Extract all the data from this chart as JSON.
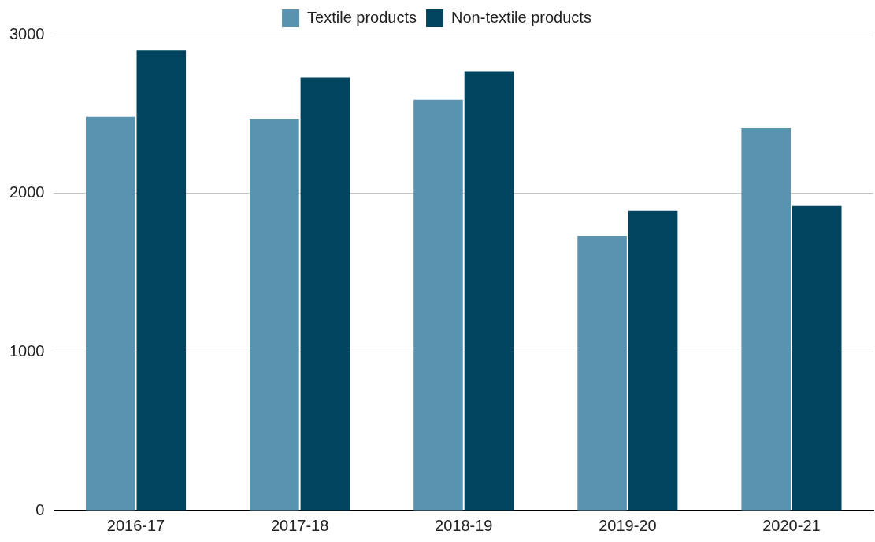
{
  "chart_data": {
    "type": "bar",
    "categories": [
      "2016-17",
      "2017-18",
      "2018-19",
      "2019-20",
      "2020-21"
    ],
    "series": [
      {
        "name": "Textile products",
        "color": "#5a93b0",
        "values": [
          2480,
          2470,
          2590,
          1730,
          2410
        ]
      },
      {
        "name": "Non-textile products",
        "color": "#00445f",
        "values": [
          2900,
          2730,
          2770,
          1890,
          1920
        ]
      }
    ],
    "ylim": [
      0,
      3000
    ],
    "yticks": [
      0,
      1000,
      2000,
      3000
    ],
    "grid": "y",
    "legend": "top"
  }
}
